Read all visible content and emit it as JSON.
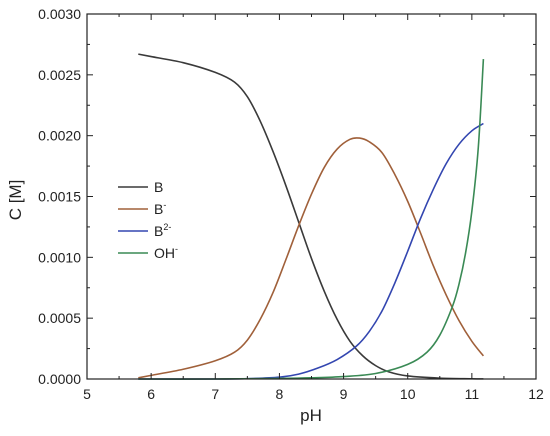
{
  "chart_data": {
    "type": "line",
    "title": "",
    "xlabel": "pH",
    "ylabel": "C [M]",
    "xlim": [
      5,
      12
    ],
    "ylim": [
      0,
      0.003
    ],
    "x_ticks": [
      5,
      6,
      7,
      8,
      9,
      10,
      11,
      12
    ],
    "x_tick_labels": [
      "5",
      "6",
      "7",
      "8",
      "9",
      "10",
      "11",
      "12"
    ],
    "y_ticks": [
      0,
      0.0005,
      0.001,
      0.0015,
      0.002,
      0.0025,
      0.003
    ],
    "y_tick_labels": [
      "0.0000",
      "0.0005",
      "0.0010",
      "0.0015",
      "0.0020",
      "0.0025",
      "0.0030"
    ],
    "grid": false,
    "legend_position": "center-left",
    "series": [
      {
        "name": "B",
        "legend_base": "B",
        "legend_sup": "",
        "color": "#3a3a3a",
        "points": [
          [
            5.8,
            0.00267
          ],
          [
            6.0,
            0.00265
          ],
          [
            6.5,
            0.0026
          ],
          [
            7.0,
            0.00252
          ],
          [
            7.3,
            0.00244
          ],
          [
            7.5,
            0.00232
          ],
          [
            7.7,
            0.00212
          ],
          [
            7.9,
            0.00187
          ],
          [
            8.1,
            0.00159
          ],
          [
            8.3,
            0.00129
          ],
          [
            8.5,
            0.00099
          ],
          [
            8.7,
            0.00072
          ],
          [
            8.9,
            0.00049
          ],
          [
            9.1,
            0.00031
          ],
          [
            9.3,
            0.00019
          ],
          [
            9.5,
            0.00011
          ],
          [
            9.7,
            6e-05
          ],
          [
            10.0,
            2.5e-05
          ],
          [
            10.5,
            7e-06
          ],
          [
            11.0,
            2e-06
          ],
          [
            11.18,
            1e-06
          ]
        ]
      },
      {
        "name": "B-",
        "legend_base": "B",
        "legend_sup": "-",
        "color": "#a0603a",
        "points": [
          [
            5.8,
            1e-05
          ],
          [
            6.0,
            3e-05
          ],
          [
            6.5,
            8e-05
          ],
          [
            7.0,
            0.00015
          ],
          [
            7.3,
            0.00022
          ],
          [
            7.5,
            0.00032
          ],
          [
            7.7,
            0.00049
          ],
          [
            7.9,
            0.00071
          ],
          [
            8.1,
            0.00098
          ],
          [
            8.3,
            0.00126
          ],
          [
            8.5,
            0.00152
          ],
          [
            8.7,
            0.00174
          ],
          [
            8.9,
            0.00189
          ],
          [
            9.1,
            0.00197
          ],
          [
            9.25,
            0.00198
          ],
          [
            9.4,
            0.00195
          ],
          [
            9.6,
            0.00186
          ],
          [
            9.8,
            0.00168
          ],
          [
            10.0,
            0.00146
          ],
          [
            10.2,
            0.0012
          ],
          [
            10.4,
            0.00093
          ],
          [
            10.6,
            0.00069
          ],
          [
            10.8,
            0.00048
          ],
          [
            11.0,
            0.00031
          ],
          [
            11.18,
            0.00019
          ]
        ]
      },
      {
        "name": "B2-",
        "legend_base": "B",
        "legend_sup": "2-",
        "color": "#3346b0",
        "points": [
          [
            5.8,
            0.0
          ],
          [
            7.0,
            0.0
          ],
          [
            7.5,
            3e-06
          ],
          [
            8.0,
            1.5e-05
          ],
          [
            8.3,
            4e-05
          ],
          [
            8.6,
            9e-05
          ],
          [
            8.9,
            0.00016
          ],
          [
            9.2,
            0.00027
          ],
          [
            9.4,
            0.00039
          ],
          [
            9.6,
            0.00056
          ],
          [
            9.8,
            0.00079
          ],
          [
            10.0,
            0.00105
          ],
          [
            10.2,
            0.00132
          ],
          [
            10.4,
            0.00156
          ],
          [
            10.6,
            0.00177
          ],
          [
            10.8,
            0.00193
          ],
          [
            11.0,
            0.00204
          ],
          [
            11.18,
            0.0021
          ]
        ]
      },
      {
        "name": "OH-",
        "legend_base": "OH",
        "legend_sup": "-",
        "color": "#3a8a55",
        "points": [
          [
            5.8,
            0.0
          ],
          [
            7.0,
            0.0
          ],
          [
            8.0,
            5e-06
          ],
          [
            8.5,
            1e-05
          ],
          [
            9.0,
            2e-05
          ],
          [
            9.5,
            4.5e-05
          ],
          [
            10.0,
            0.00012
          ],
          [
            10.3,
            0.00022
          ],
          [
            10.5,
            0.00036
          ],
          [
            10.7,
            0.0006
          ],
          [
            10.8,
            0.00078
          ],
          [
            10.9,
            0.00103
          ],
          [
            11.0,
            0.00138
          ],
          [
            11.1,
            0.0019
          ],
          [
            11.18,
            0.00263
          ]
        ]
      }
    ]
  }
}
